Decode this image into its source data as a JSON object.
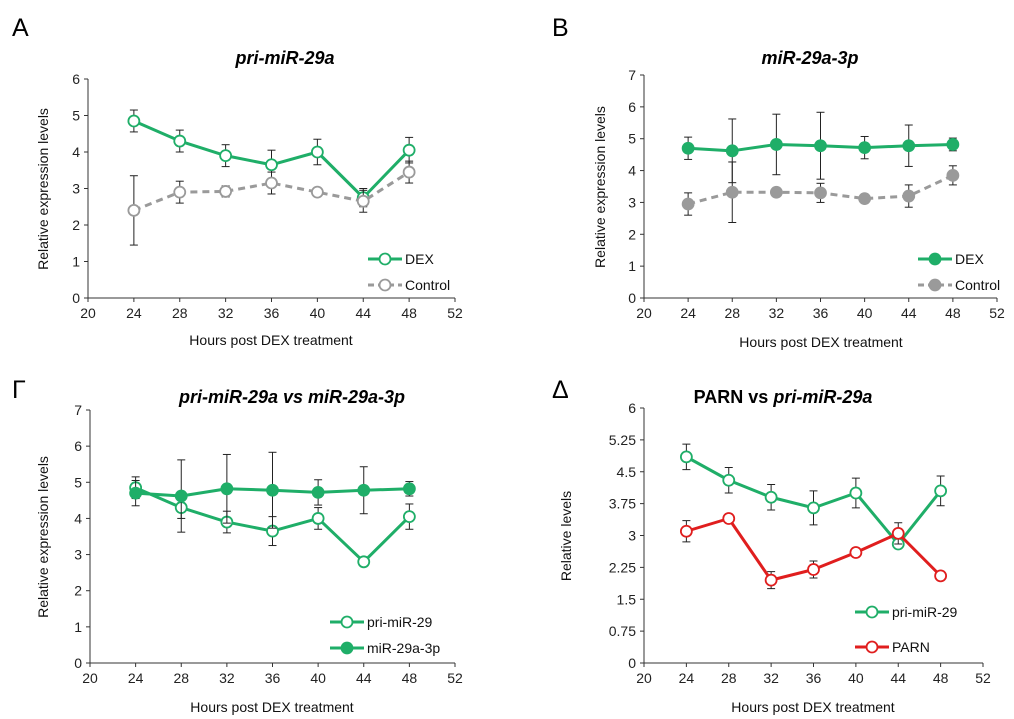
{
  "colors": {
    "green": "#1fae68",
    "gray": "#9a9a9a",
    "red": "#e01e1e",
    "axis": "#333333",
    "error": "#222222"
  },
  "chart_data": [
    {
      "panel": "A",
      "type": "line",
      "title": "pri-miR-29a",
      "title_italic": true,
      "xlabel": "Hours post DEX treatment",
      "ylabel": "Relative expression levels",
      "xlim": [
        20,
        52
      ],
      "xticks": [
        20,
        24,
        28,
        32,
        36,
        40,
        44,
        48,
        52
      ],
      "ylim": [
        0,
        6
      ],
      "yticks": [
        "0",
        "1",
        "2",
        "3",
        "4",
        "5",
        "6"
      ],
      "legend_position": "bottom-right",
      "x": [
        24,
        28,
        32,
        36,
        40,
        44,
        48
      ],
      "series": [
        {
          "name": "DEX",
          "color": "green",
          "marker": "open",
          "dashed": false,
          "values": [
            4.85,
            4.3,
            3.9,
            3.65,
            4.0,
            2.75,
            4.05
          ],
          "errors": [
            0.3,
            0.3,
            0.3,
            0.4,
            0.35,
            0.25,
            0.35
          ]
        },
        {
          "name": "Control",
          "color": "gray",
          "marker": "open",
          "dashed": true,
          "values": [
            2.4,
            2.9,
            2.92,
            3.15,
            2.9,
            2.65,
            3.45
          ],
          "errors": [
            0.95,
            0.3,
            0.15,
            0.3,
            0.1,
            0.3,
            0.3
          ]
        }
      ]
    },
    {
      "panel": "B",
      "type": "line",
      "title": "miR-29a-3p",
      "title_italic": true,
      "xlabel": "Hours post DEX treatment",
      "ylabel": "Relative expression levels",
      "xlim": [
        20,
        52
      ],
      "xticks": [
        20,
        24,
        28,
        32,
        36,
        40,
        44,
        48,
        52
      ],
      "ylim": [
        0,
        7
      ],
      "yticks": [
        "0",
        "1",
        "2",
        "3",
        "4",
        "5",
        "6",
        "7"
      ],
      "legend_position": "bottom-right",
      "x": [
        24,
        28,
        32,
        36,
        40,
        44,
        48
      ],
      "series": [
        {
          "name": "DEX",
          "color": "green",
          "marker": "filled",
          "dashed": false,
          "values": [
            4.7,
            4.62,
            4.82,
            4.78,
            4.72,
            4.78,
            4.82
          ],
          "errors": [
            0.35,
            1.0,
            0.95,
            1.05,
            0.35,
            0.65,
            0.2
          ]
        },
        {
          "name": "Control",
          "color": "gray",
          "marker": "filled",
          "dashed": true,
          "values": [
            2.95,
            3.32,
            3.32,
            3.3,
            3.12,
            3.2,
            3.85
          ],
          "errors": [
            0.35,
            0.95,
            0.1,
            0.3,
            0.1,
            0.35,
            0.3
          ]
        }
      ]
    },
    {
      "panel": "Γ",
      "type": "line",
      "title": "pri-miR-29a vs miR-29a-3p",
      "title_italic": true,
      "xlabel": "Hours post DEX treatment",
      "ylabel": "Relative expression levels",
      "xlim": [
        20,
        52
      ],
      "xticks": [
        20,
        24,
        28,
        32,
        36,
        40,
        44,
        48,
        52
      ],
      "ylim": [
        0,
        7
      ],
      "yticks": [
        "0",
        "1",
        "2",
        "3",
        "4",
        "5",
        "6",
        "7"
      ],
      "legend_position": "bottom-right",
      "x": [
        24,
        28,
        32,
        36,
        40,
        44,
        48
      ],
      "series": [
        {
          "name": "pri-miR-29",
          "color": "green",
          "marker": "open",
          "dashed": false,
          "values": [
            4.85,
            4.3,
            3.9,
            3.65,
            4.0,
            2.8,
            4.05
          ],
          "errors": [
            0.3,
            0.3,
            0.3,
            0.4,
            0.3,
            0,
            0.35
          ]
        },
        {
          "name": "miR-29a-3p",
          "color": "green",
          "marker": "filled",
          "dashed": false,
          "values": [
            4.7,
            4.62,
            4.82,
            4.78,
            4.72,
            4.78,
            4.82
          ],
          "errors": [
            0.35,
            1.0,
            0.95,
            1.05,
            0.35,
            0.65,
            0.2
          ]
        }
      ]
    },
    {
      "panel": "Δ",
      "type": "line",
      "title_plain": "PARN vs ",
      "title_italic_part": "pri-miR-29a",
      "xlabel": "Hours post DEX treatment",
      "ylabel": "Relative levels",
      "xlim": [
        20,
        52
      ],
      "xticks": [
        20,
        24,
        28,
        32,
        36,
        40,
        44,
        48,
        52
      ],
      "ylim": [
        0,
        6
      ],
      "yticks": [
        "0",
        "0.75",
        "1.5",
        "2.25",
        "3",
        "3.75",
        "4.5",
        "5.25",
        "6"
      ],
      "legend_position": "bottom-right",
      "x": [
        24,
        28,
        32,
        36,
        40,
        44,
        48
      ],
      "series": [
        {
          "name": "pri-miR-29",
          "color": "green",
          "marker": "open",
          "dashed": false,
          "values": [
            4.85,
            4.3,
            3.9,
            3.65,
            4.0,
            2.8,
            4.05
          ],
          "errors": [
            0.3,
            0.3,
            0.3,
            0.4,
            0.35,
            0,
            0.35
          ]
        },
        {
          "name": "PARN",
          "color": "red",
          "marker": "open",
          "dashed": false,
          "values": [
            3.1,
            3.4,
            1.95,
            2.2,
            2.6,
            3.05,
            2.05
          ],
          "errors": [
            0.25,
            0,
            0.2,
            0.2,
            0,
            0.25,
            0
          ]
        }
      ]
    }
  ]
}
